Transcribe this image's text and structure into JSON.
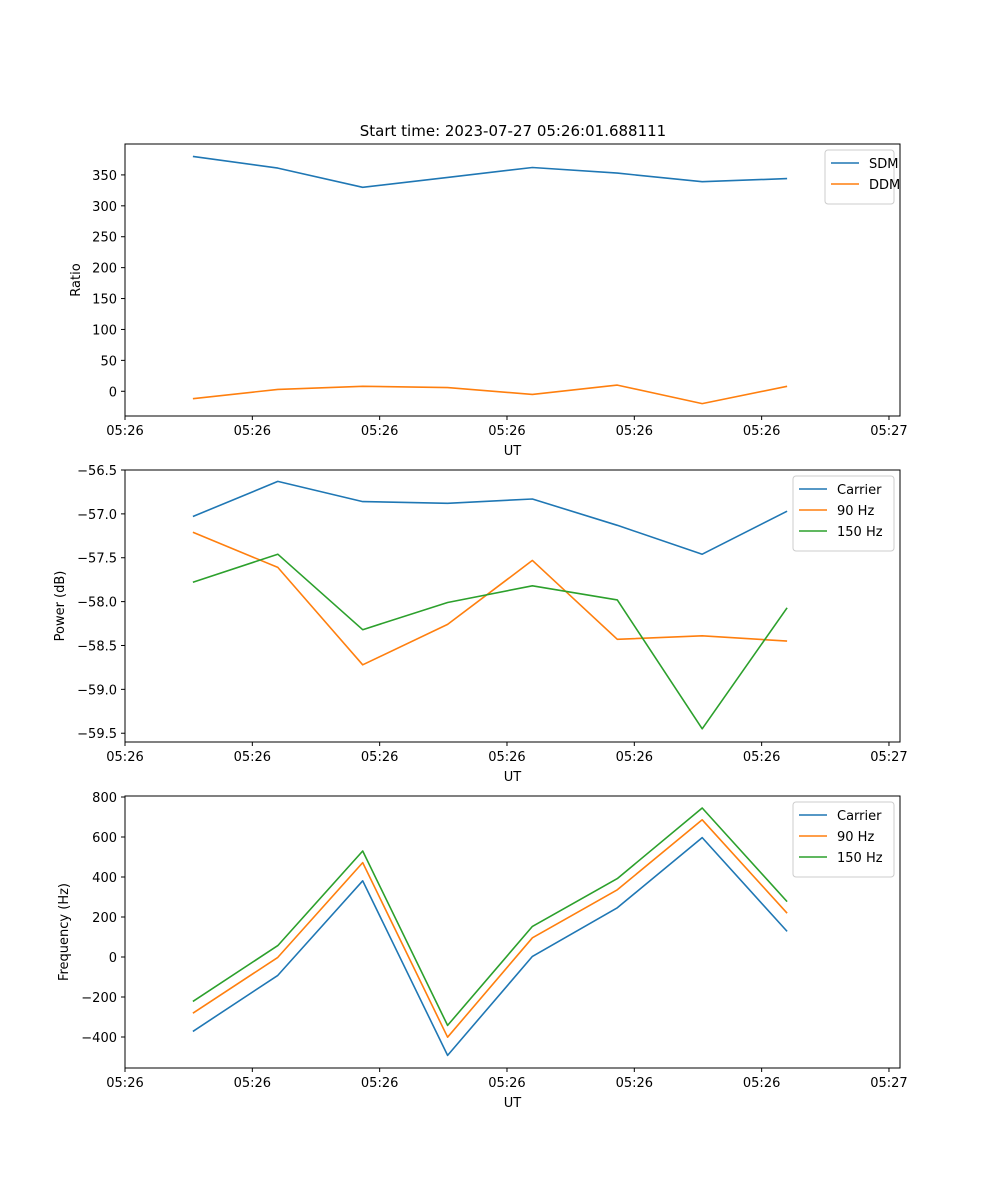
{
  "figure_title": "Start time: 2023-07-27 05:26:01.688111",
  "colors": {
    "blue": "#1f77b4",
    "orange": "#ff7f0e",
    "green": "#2ca02c"
  },
  "chart_data": [
    {
      "type": "line",
      "title": "Start time: 2023-07-27 05:26:01.688111",
      "xlabel": "UT",
      "ylabel": "Ratio",
      "x": [
        1,
        2,
        3,
        4,
        5,
        6,
        7,
        8
      ],
      "xlim": [
        0.2,
        9.33
      ],
      "xticks": [
        {
          "v": 0.2,
          "label": "05:26"
        },
        {
          "v": 1.7,
          "label": "05:26"
        },
        {
          "v": 3.2,
          "label": "05:26"
        },
        {
          "v": 4.7,
          "label": "05:26"
        },
        {
          "v": 6.2,
          "label": "05:26"
        },
        {
          "v": 7.7,
          "label": "05:26"
        },
        {
          "v": 9.2,
          "label": "05:27"
        }
      ],
      "ylim": [
        -40,
        400
      ],
      "yticks": [
        {
          "v": 0,
          "label": "0"
        },
        {
          "v": 50,
          "label": "50"
        },
        {
          "v": 100,
          "label": "100"
        },
        {
          "v": 150,
          "label": "150"
        },
        {
          "v": 200,
          "label": "200"
        },
        {
          "v": 250,
          "label": "250"
        },
        {
          "v": 300,
          "label": "300"
        },
        {
          "v": 350,
          "label": "350"
        }
      ],
      "legend": "top-right",
      "series": [
        {
          "name": "SDM",
          "color": "#1f77b4",
          "values": [
            380,
            361,
            330,
            346,
            362,
            353,
            339,
            344
          ]
        },
        {
          "name": "DDM",
          "color": "#ff7f0e",
          "values": [
            -12,
            3,
            8,
            6,
            -5,
            10,
            -20,
            8
          ]
        }
      ]
    },
    {
      "type": "line",
      "title": "",
      "xlabel": "UT",
      "ylabel": "Power (dB)",
      "x": [
        1,
        2,
        3,
        4,
        5,
        6,
        7,
        8
      ],
      "xlim": [
        0.2,
        9.33
      ],
      "xticks": [
        {
          "v": 0.2,
          "label": "05:26"
        },
        {
          "v": 1.7,
          "label": "05:26"
        },
        {
          "v": 3.2,
          "label": "05:26"
        },
        {
          "v": 4.7,
          "label": "05:26"
        },
        {
          "v": 6.2,
          "label": "05:26"
        },
        {
          "v": 7.7,
          "label": "05:26"
        },
        {
          "v": 9.2,
          "label": "05:27"
        }
      ],
      "ylim": [
        -59.6,
        -56.5
      ],
      "yticks": [
        {
          "v": -56.5,
          "label": "−56.5"
        },
        {
          "v": -57.0,
          "label": "−57.0"
        },
        {
          "v": -57.5,
          "label": "−57.5"
        },
        {
          "v": -58.0,
          "label": "−58.0"
        },
        {
          "v": -58.5,
          "label": "−58.5"
        },
        {
          "v": -59.0,
          "label": "−59.0"
        },
        {
          "v": -59.5,
          "label": "−59.5"
        }
      ],
      "legend": "top-right",
      "series": [
        {
          "name": "Carrier",
          "color": "#1f77b4",
          "values": [
            -57.03,
            -56.63,
            -56.86,
            -56.88,
            -56.83,
            -57.13,
            -57.46,
            -56.97
          ]
        },
        {
          "name": "90 Hz",
          "color": "#ff7f0e",
          "values": [
            -57.21,
            -57.61,
            -58.72,
            -58.26,
            -57.53,
            -58.43,
            -58.39,
            -58.45
          ]
        },
        {
          "name": "150 Hz",
          "color": "#2ca02c",
          "values": [
            -57.78,
            -57.46,
            -58.32,
            -58.01,
            -57.82,
            -57.98,
            -59.45,
            -58.07
          ]
        }
      ]
    },
    {
      "type": "line",
      "title": "",
      "xlabel": "UT",
      "ylabel": "Frequency (Hz)",
      "x": [
        1,
        2,
        3,
        4,
        5,
        6,
        7,
        8
      ],
      "xlim": [
        0.2,
        9.33
      ],
      "xticks": [
        {
          "v": 0.2,
          "label": "05:26"
        },
        {
          "v": 1.7,
          "label": "05:26"
        },
        {
          "v": 3.2,
          "label": "05:26"
        },
        {
          "v": 4.7,
          "label": "05:26"
        },
        {
          "v": 6.2,
          "label": "05:26"
        },
        {
          "v": 7.7,
          "label": "05:26"
        },
        {
          "v": 9.2,
          "label": "05:27"
        }
      ],
      "ylim": [
        -555,
        805
      ],
      "yticks": [
        {
          "v": -400,
          "label": "−400"
        },
        {
          "v": -200,
          "label": "−200"
        },
        {
          "v": 0,
          "label": "0"
        },
        {
          "v": 200,
          "label": "200"
        },
        {
          "v": 400,
          "label": "400"
        },
        {
          "v": 600,
          "label": "600"
        },
        {
          "v": 800,
          "label": "800"
        }
      ],
      "legend": "top-right",
      "series": [
        {
          "name": "Carrier",
          "color": "#1f77b4",
          "values": [
            -372,
            -92,
            381,
            -492,
            3,
            246,
            597,
            128
          ]
        },
        {
          "name": "90 Hz",
          "color": "#ff7f0e",
          "values": [
            -281,
            -2,
            472,
            -401,
            96,
            336,
            686,
            219
          ]
        },
        {
          "name": "150 Hz",
          "color": "#2ca02c",
          "values": [
            -222,
            57,
            530,
            -342,
            153,
            392,
            745,
            277
          ]
        }
      ]
    }
  ]
}
